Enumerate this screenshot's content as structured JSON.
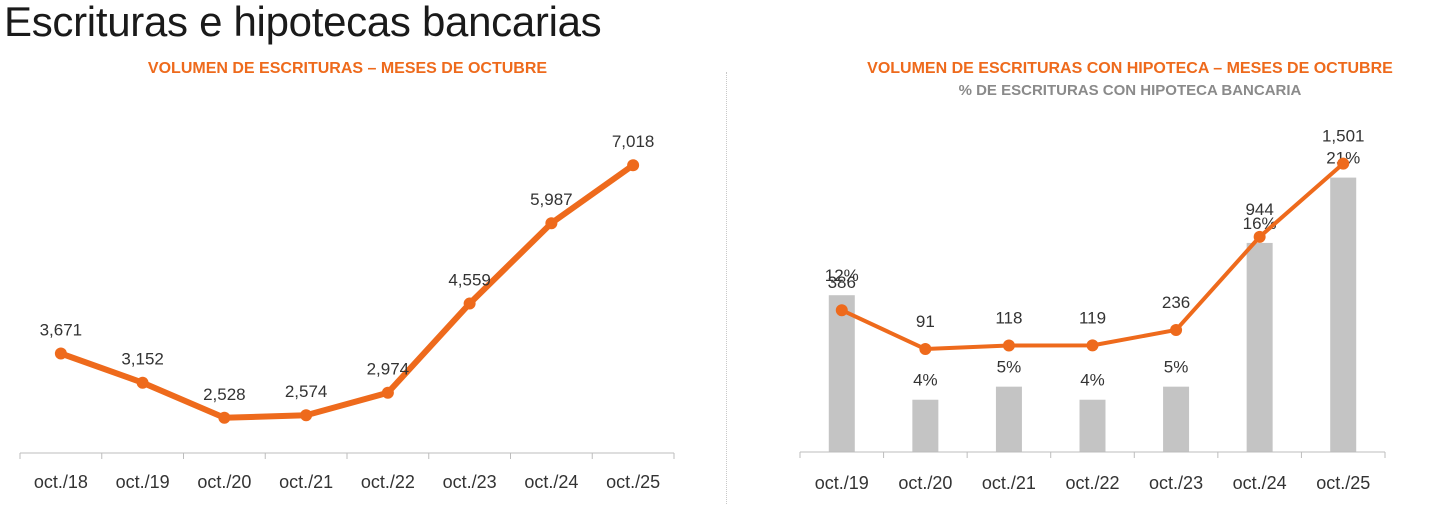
{
  "page": {
    "title": "Escrituras e hipotecas bancarias",
    "line_color": "#ee6a1c",
    "bar_color": "#c4c4c4"
  },
  "chart_data": [
    {
      "type": "line",
      "title": "VOLUMEN DE ESCRITURAS – MESES DE OCTUBRE",
      "categories": [
        "oct./18",
        "oct./19",
        "oct./20",
        "oct./21",
        "oct./22",
        "oct./23",
        "oct./24",
        "oct./25"
      ],
      "series": [
        {
          "values": [
            3671,
            3152,
            2528,
            2574,
            2974,
            4559,
            5987,
            7018
          ]
        }
      ],
      "data_labels": [
        "3,671",
        "3,152",
        "2,528",
        "2,574",
        "2,974",
        "4,559",
        "5,987",
        "7,018"
      ],
      "grid": false,
      "legend": "none"
    },
    {
      "type": "bar+line",
      "title": "VOLUMEN DE ESCRITURAS CON HIPOTECA – MESES DE OCTUBRE",
      "subtitle": "% DE ESCRITURAS CON HIPOTECA BANCARIA",
      "categories": [
        "oct./19",
        "oct./20",
        "oct./21",
        "oct./22",
        "oct./23",
        "oct./24",
        "oct./25"
      ],
      "series": [
        {
          "type": "line",
          "values": [
            386,
            91,
            118,
            119,
            236,
            944,
            1501
          ],
          "labels": [
            "386",
            "91",
            "118",
            "119",
            "236",
            "944",
            "1,501"
          ]
        },
        {
          "type": "bar",
          "values": [
            12,
            4,
            5,
            4,
            5,
            16,
            21
          ],
          "labels": [
            "12%",
            "4%",
            "5%",
            "4%",
            "5%",
            "16%",
            "21%"
          ]
        }
      ],
      "grid": false,
      "legend": "none"
    }
  ]
}
